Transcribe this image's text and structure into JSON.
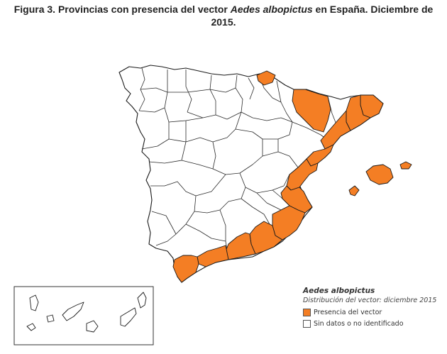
{
  "title": {
    "prefix": "Figura 3. Provincias con presencia del vector ",
    "species": "Aedes albopictus",
    "suffix_line1": " en España. Diciembre de",
    "line2": "2015."
  },
  "legend": {
    "title": "Aedes albopictus",
    "subtitle": "Distribución del vector: diciembre 2015",
    "items": [
      {
        "label": "Presencia del vector",
        "color": "#f47e24"
      },
      {
        "label": "Sin datos o no identificado",
        "color": "#ffffff"
      }
    ]
  },
  "colors": {
    "presence": "#f47e24",
    "no_data": "#ffffff",
    "border": "#1a1a1a"
  }
}
